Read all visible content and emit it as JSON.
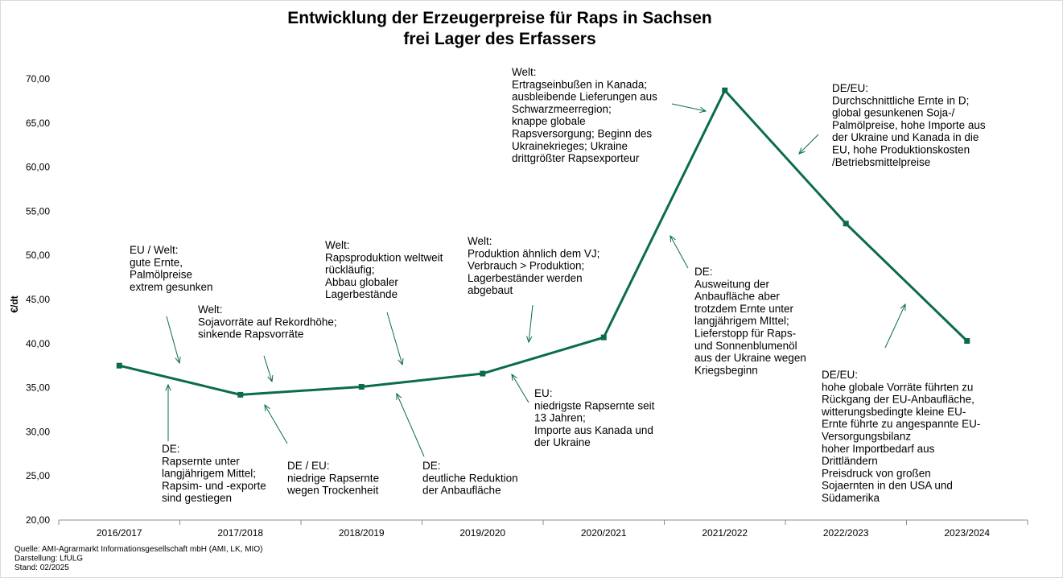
{
  "chart_data": {
    "type": "line",
    "title": [
      "Entwicklung der Erzeugerpreise für Raps in Sachsen",
      "frei Lager des Erfassers"
    ],
    "ylabel": "€/dt",
    "xlabel": "",
    "ylim": [
      20,
      70
    ],
    "ytick_labels": [
      "20,00",
      "25,00",
      "30,00",
      "35,00",
      "40,00",
      "45,00",
      "50,00",
      "55,00",
      "60,00",
      "65,00",
      "70,00"
    ],
    "categories": [
      "2016/2017",
      "2017/2018",
      "2018/2019",
      "2019/2020",
      "2020/2021",
      "2021/2022",
      "2022/2023",
      "2023/2024"
    ],
    "series": [
      {
        "values": [
          37.5,
          34.2,
          35.1,
          36.6,
          40.7,
          68.7,
          53.6,
          40.3
        ]
      }
    ],
    "line_color": "#0b6b4f",
    "grid": false,
    "legend": "none",
    "annotations": [
      {
        "lines": [
          "EU / Welt:",
          "gute Ernte,",
          "Palmölpreise",
          "extrem gesunken"
        ]
      },
      {
        "lines": [
          "Welt:",
          "Sojavorräte auf Rekordhöhe;",
          "sinkende Rapsvorräte"
        ]
      },
      {
        "lines": [
          "Welt:",
          "Rapsproduktion weltweit",
          "rückläufig;",
          "Abbau globaler",
          "Lagerbestände"
        ]
      },
      {
        "lines": [
          "Welt:",
          "Produktion ähnlich dem VJ;",
          "Verbrauch > Produktion;",
          "Lagerbeständer werden",
          "abgebaut"
        ]
      },
      {
        "lines": [
          "Welt:",
          "Ertragseinbußen in Kanada;",
          "ausbleibende Lieferungen aus",
          "Schwarzmeerregion;",
          "knappe globale",
          "Rapsversorgung; Beginn des",
          "Ukrainekrieges; Ukraine",
          "drittgrößter Rapsexporteur"
        ]
      },
      {
        "lines": [
          "DE/EU:",
          "Durchschnittliche Ernte in D;",
          "global gesunkenen Soja-/",
          "Palmölpreise, hohe Importe aus",
          "der Ukraine und Kanada in die",
          "EU, hohe Produktionskosten",
          "/Betriebsmittelpreise"
        ]
      },
      {
        "lines": [
          "DE:",
          "Rapsernte unter",
          "langjährigem  Mittel;",
          "Rapsim- und -exporte",
          "sind gestiegen"
        ]
      },
      {
        "lines": [
          "DE / EU:",
          "niedrige Rapsernte",
          "wegen Trockenheit"
        ]
      },
      {
        "lines": [
          "DE:",
          "deutliche Reduktion",
          "der Anbaufläche"
        ]
      },
      {
        "lines": [
          "EU:",
          "niedrigste Rapsernte seit",
          "13 Jahren;",
          "Importe aus Kanada und",
          "der Ukraine"
        ]
      },
      {
        "lines": [
          "DE:",
          "Ausweitung der",
          "Anbaufläche aber",
          "trotzdem Ernte unter",
          "langjährigem MIttel;",
          "Lieferstopp für Raps-",
          "und Sonnenblumenöl",
          "aus der Ukraine wegen",
          "Kriegsbeginn"
        ]
      },
      {
        "lines": [
          "DE/EU:",
          "hohe globale Vorräte führten zu",
          "Rückgang der EU-Anbaufläche,",
          "witterungsbedingte kleine EU-",
          "Ernte führte zu angespannte EU-",
          "Versorgungsbilanz",
          "hoher Importbedarf aus",
          "Drittländern",
          "Preisdruck von großen",
          "Sojaernten in den USA und",
          "Südamerika"
        ]
      }
    ]
  },
  "source_notes": [
    "Quelle: AMI-Agrarmarkt Informationsgesellschaft mbH (AMI, LK, MIO)",
    "Darstellung: LfULG",
    "Stand: 02/2025"
  ]
}
